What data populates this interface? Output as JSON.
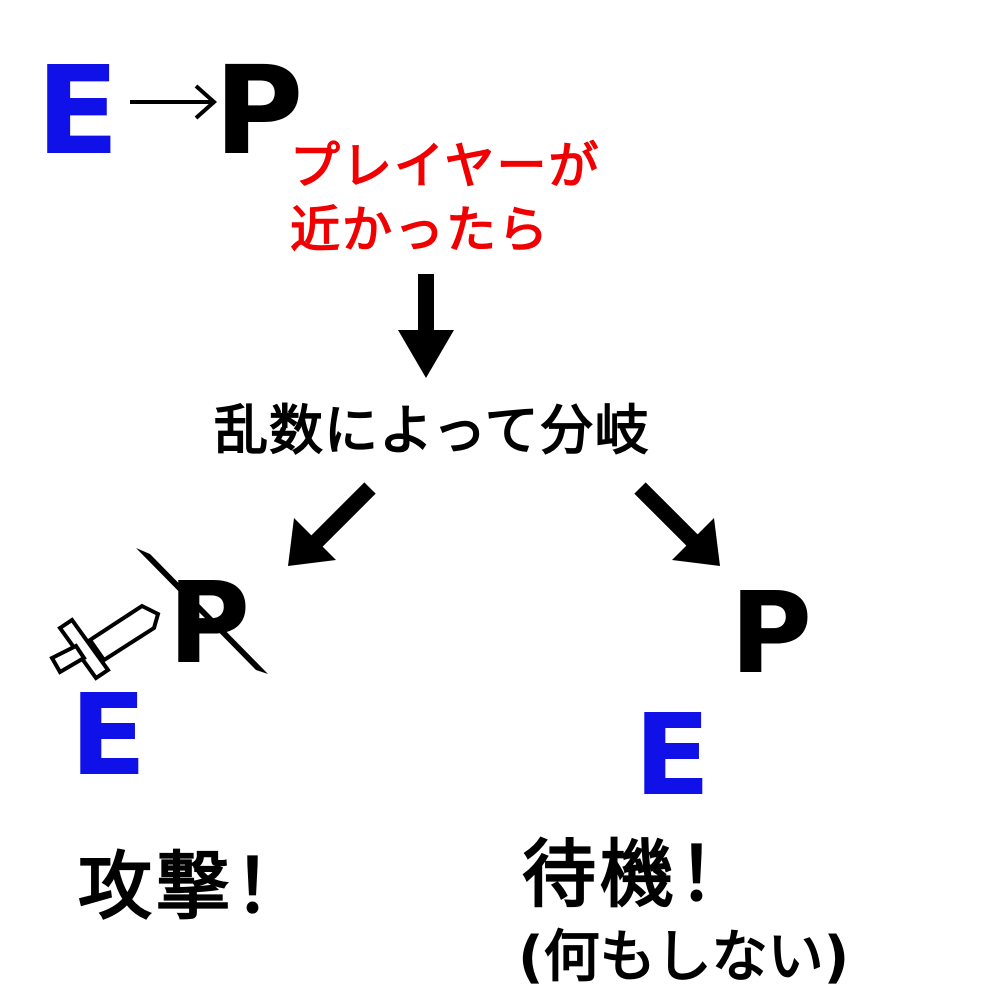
{
  "top": {
    "enemy_letter": "E",
    "player_letter": "P",
    "condition_line1": "プレイヤーが",
    "condition_line2": "近かったら"
  },
  "branch_label": "乱数によって分岐",
  "left_branch": {
    "player_letter": "P",
    "enemy_letter": "E",
    "result": "攻撃！"
  },
  "right_branch": {
    "player_letter": "P",
    "enemy_letter": "E",
    "result": "待機！",
    "result_note": "(何もしない)"
  },
  "colors": {
    "enemy": "#1010e8",
    "player": "#000000",
    "condition": "#f00000"
  },
  "icons": [
    "right-arrow-icon",
    "down-arrow-icon",
    "down-left-arrow-icon",
    "down-right-arrow-icon",
    "sword-icon",
    "slash-icon"
  ]
}
